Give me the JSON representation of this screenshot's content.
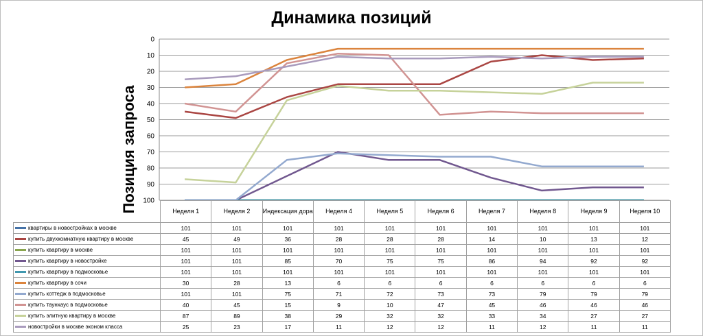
{
  "chart_data": {
    "type": "line",
    "title": "Динамика позиций",
    "ylabel": "Позиция запроса",
    "xlabel": "",
    "categories": [
      "Неделя 1",
      "Неделя 2",
      "Индексация доработок",
      "Неделя 4",
      "Неделя 5",
      "Неделя 6",
      "Неделя 7",
      "Неделя 8",
      "Неделя 9",
      "Неделя 10"
    ],
    "ylim": [
      100,
      0
    ],
    "y_reversed": true,
    "yticks": [
      "0",
      "10",
      "20",
      "30",
      "40",
      "50",
      "60",
      "70",
      "80",
      "90",
      "100"
    ],
    "grid": true,
    "legend": "data-table",
    "series": [
      {
        "name": "квартиры в новостройках в москве",
        "color": "#4572a7",
        "values": [
          101,
          101,
          101,
          101,
          101,
          101,
          101,
          101,
          101,
          101
        ]
      },
      {
        "name": "купить двухкомнатную квартиру в москве",
        "color": "#aa4643",
        "values": [
          45,
          49,
          36,
          28,
          28,
          28,
          14,
          10,
          13,
          12
        ]
      },
      {
        "name": "купить квартиру в москве",
        "color": "#89a54e",
        "values": [
          101,
          101,
          101,
          101,
          101,
          101,
          101,
          101,
          101,
          101
        ]
      },
      {
        "name": "купить квартиру в новостройке",
        "color": "#71588f",
        "values": [
          101,
          101,
          85,
          70,
          75,
          75,
          86,
          94,
          92,
          92
        ]
      },
      {
        "name": "купить квартиру в подмосковье",
        "color": "#4198af",
        "values": [
          101,
          101,
          101,
          101,
          101,
          101,
          101,
          101,
          101,
          101
        ]
      },
      {
        "name": "купить квартиру в сочи",
        "color": "#db843d",
        "values": [
          30,
          28,
          13,
          6,
          6,
          6,
          6,
          6,
          6,
          6
        ]
      },
      {
        "name": "купить коттедж в подмосковье",
        "color": "#93a9cf",
        "values": [
          101,
          101,
          75,
          71,
          72,
          73,
          73,
          79,
          79,
          79
        ]
      },
      {
        "name": "купить таунхаус в подмосковье",
        "color": "#d19392",
        "values": [
          40,
          45,
          15,
          9,
          10,
          47,
          45,
          46,
          46,
          46
        ]
      },
      {
        "name": "купить элитную квартиру в москве",
        "color": "#c6d29a",
        "values": [
          87,
          89,
          38,
          29,
          32,
          32,
          33,
          34,
          27,
          27
        ]
      },
      {
        "name": "новостройки в москве эконом класса",
        "color": "#a99bbd",
        "values": [
          25,
          23,
          17,
          11,
          12,
          12,
          11,
          12,
          11,
          11
        ]
      }
    ]
  }
}
